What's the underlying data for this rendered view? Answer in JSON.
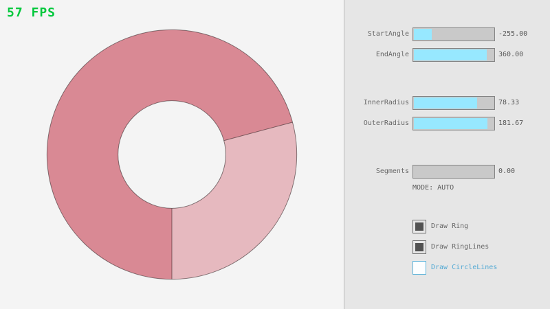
{
  "fps": "57 FPS",
  "colors": {
    "fps_green": "#00c83c",
    "canvas_bg": "#f4f4f4",
    "panel_bg": "#e6e6e6",
    "slider_fill": "#97e8ff",
    "slider_track": "#c9c9c9",
    "slider_border": "#838383",
    "focused_blue": "#5bb2d9",
    "ring_dark": "#d98994",
    "ring_light": "#e6b9bf"
  },
  "panel": {
    "sliders": [
      {
        "label": "StartAngle",
        "value": "-255.00",
        "fill_pct": 21.7
      },
      {
        "label": "EndAngle",
        "value": "360.00",
        "fill_pct": 90.0
      },
      {
        "label": "InnerRadius",
        "value": "78.33",
        "fill_pct": 78.3
      },
      {
        "label": "OuterRadius",
        "value": "181.67",
        "fill_pct": 90.8
      },
      {
        "label": "Segments",
        "value": "0.00",
        "fill_pct": 0
      }
    ],
    "mode_text": "MODE: AUTO",
    "checkboxes": [
      {
        "label": "Draw Ring",
        "checked": true,
        "focused": false
      },
      {
        "label": "Draw RingLines",
        "checked": true,
        "focused": false
      },
      {
        "label": "Draw CircleLines",
        "checked": false,
        "focused": true
      }
    ]
  }
}
